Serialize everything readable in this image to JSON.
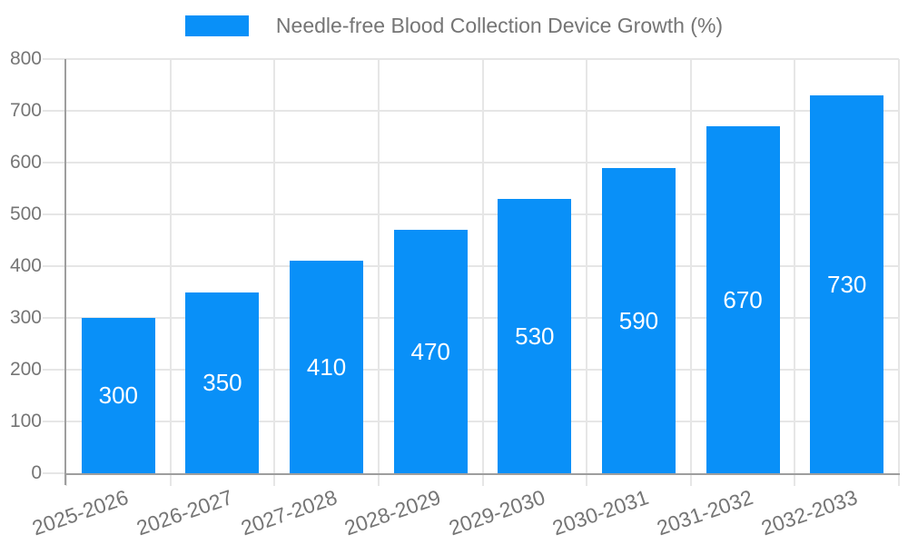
{
  "chart_data": {
    "type": "bar",
    "title": "Needle-free Blood Collection Device Growth (%)",
    "categories": [
      "2025-2026",
      "2026-2027",
      "2027-2028",
      "2028-2029",
      "2029-2030",
      "2030-2031",
      "2031-2032",
      "2032-2033"
    ],
    "values": [
      300,
      350,
      410,
      470,
      530,
      590,
      670,
      730
    ],
    "value_labels": [
      "300",
      "350",
      "410",
      "470",
      "530",
      "590",
      "670",
      "730"
    ],
    "xlabel": "",
    "ylabel": "",
    "ylim": [
      0,
      800
    ],
    "yticks": [
      0,
      100,
      200,
      300,
      400,
      500,
      600,
      700,
      800
    ],
    "grid": true,
    "legend_position": "top-center",
    "colors": {
      "bar": "#0990f8",
      "value_label": "#ffffff",
      "tick_label": "#757575",
      "legend_label": "#757575",
      "gridline": "#e6e6e6",
      "axis_line": "#9e9e9e",
      "background": "#ffffff"
    }
  }
}
